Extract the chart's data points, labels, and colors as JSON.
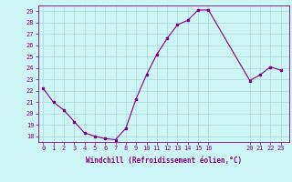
{
  "x": [
    0,
    1,
    2,
    3,
    4,
    5,
    6,
    7,
    8,
    9,
    10,
    11,
    12,
    13,
    14,
    15,
    16,
    20,
    21,
    22,
    23
  ],
  "y": [
    22.2,
    21.0,
    20.3,
    19.3,
    18.3,
    18.0,
    17.8,
    17.7,
    18.7,
    21.3,
    23.4,
    25.2,
    26.6,
    27.8,
    28.2,
    29.1,
    29.1,
    22.9,
    23.4,
    24.1,
    23.8
  ],
  "color": "#800080",
  "bg_color": "#cef5f5",
  "grid_color": "#aad8d8",
  "xlabel": "Windchill (Refroidissement éolien,°C)",
  "xticks": [
    0,
    1,
    2,
    3,
    4,
    5,
    6,
    7,
    8,
    9,
    10,
    11,
    12,
    13,
    14,
    15,
    16,
    20,
    21,
    22,
    23
  ],
  "yticks": [
    18,
    19,
    20,
    21,
    22,
    23,
    24,
    25,
    26,
    27,
    28,
    29
  ],
  "ylim": [
    17.5,
    29.5
  ],
  "xlim": [
    -0.5,
    23.8
  ]
}
